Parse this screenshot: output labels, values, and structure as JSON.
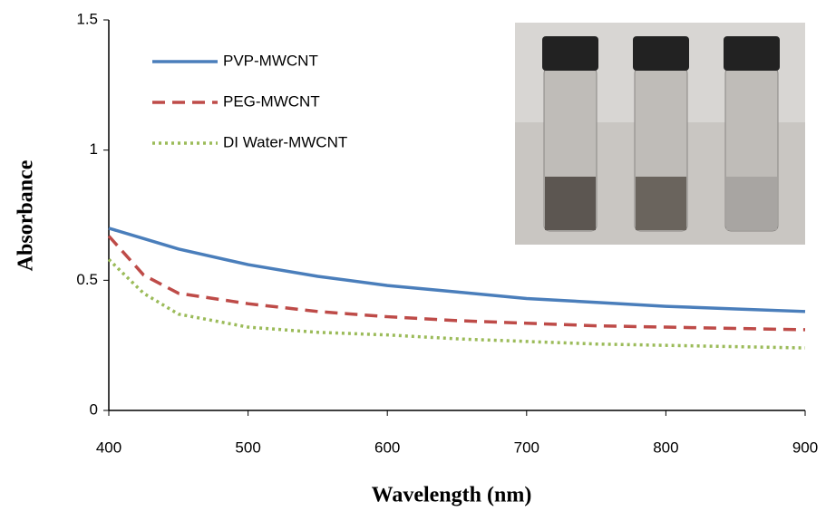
{
  "chart_data": {
    "type": "line",
    "x_label": "Wavelength (nm)",
    "y_label": "Absorbance",
    "x": [
      400,
      425,
      450,
      500,
      550,
      600,
      650,
      700,
      750,
      800,
      850,
      900
    ],
    "series": [
      {
        "name": "PVP-MWCNT",
        "color": "#4a7ebb",
        "dash": "solid",
        "values": [
          0.7,
          0.66,
          0.62,
          0.56,
          0.515,
          0.48,
          0.455,
          0.43,
          0.415,
          0.4,
          0.39,
          0.38
        ]
      },
      {
        "name": "PEG-MWCNT",
        "color": "#be4b48",
        "dash": "dashed",
        "values": [
          0.67,
          0.52,
          0.45,
          0.41,
          0.38,
          0.36,
          0.345,
          0.335,
          0.325,
          0.32,
          0.315,
          0.31
        ]
      },
      {
        "name": "DI Water-MWCNT",
        "color": "#9bbb59",
        "dash": "dotted",
        "values": [
          0.58,
          0.45,
          0.37,
          0.32,
          0.3,
          0.29,
          0.275,
          0.265,
          0.255,
          0.25,
          0.245,
          0.24
        ]
      }
    ],
    "xlim": [
      400,
      900
    ],
    "xticks": [
      400,
      500,
      600,
      700,
      800,
      900
    ],
    "ylim": [
      0,
      1.5
    ],
    "yticks": [
      0,
      0.5,
      1,
      1.5
    ],
    "grid": false,
    "legend": "top-left"
  }
}
